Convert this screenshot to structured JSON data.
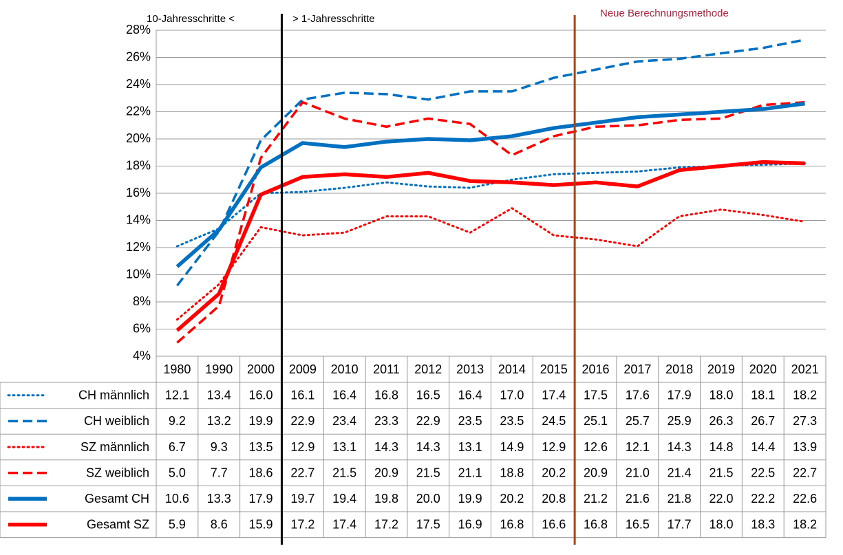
{
  "chart_data": {
    "type": "line",
    "annotations": [
      "10-Jahresschritte <",
      "> 1-Jahresschritte",
      "Neue Berechnungsmethode"
    ],
    "categories": [
      "1980",
      "1990",
      "2000",
      "2009",
      "2010",
      "2011",
      "2012",
      "2013",
      "2014",
      "2015",
      "2016",
      "2017",
      "2018",
      "2019",
      "2020",
      "2021"
    ],
    "ylim": [
      4,
      28
    ],
    "yticks": [
      {
        "value": 4,
        "label": "4%"
      },
      {
        "value": 6,
        "label": "6%"
      },
      {
        "value": 8,
        "label": "8%"
      },
      {
        "value": 10,
        "label": "10%"
      },
      {
        "value": 12,
        "label": "12%"
      },
      {
        "value": 14,
        "label": "14%"
      },
      {
        "value": 16,
        "label": "16%"
      },
      {
        "value": 18,
        "label": "18%"
      },
      {
        "value": 20,
        "label": "20%"
      },
      {
        "value": 22,
        "label": "22%"
      },
      {
        "value": 24,
        "label": "24%"
      },
      {
        "value": 26,
        "label": "26%"
      },
      {
        "value": 28,
        "label": "28%"
      }
    ],
    "grid": true,
    "series": [
      {
        "name": "CH männlich",
        "color": "#0070c0",
        "style": "dotted",
        "values": [
          12.1,
          13.4,
          16.0,
          16.1,
          16.4,
          16.8,
          16.5,
          16.4,
          17.0,
          17.4,
          17.5,
          17.6,
          17.9,
          18.0,
          18.1,
          18.2
        ],
        "value_labels": [
          "12.1",
          "13.4",
          "16.0",
          "16.1",
          "16.4",
          "16.8",
          "16.5",
          "16.4",
          "17.0",
          "17.4",
          "17.5",
          "17.6",
          "17.9",
          "18.0",
          "18.1",
          "18.2"
        ]
      },
      {
        "name": "CH weiblich",
        "color": "#0070c0",
        "style": "dashed",
        "values": [
          9.2,
          13.2,
          19.9,
          22.9,
          23.4,
          23.3,
          22.9,
          23.5,
          23.5,
          24.5,
          25.1,
          25.7,
          25.9,
          26.3,
          26.7,
          27.3
        ],
        "value_labels": [
          "9.2",
          "13.2",
          "19.9",
          "22.9",
          "23.4",
          "23.3",
          "22.9",
          "23.5",
          "23.5",
          "24.5",
          "25.1",
          "25.7",
          "25.9",
          "26.3",
          "26.7",
          "27.3"
        ]
      },
      {
        "name": "SZ männlich",
        "color": "#ff0000",
        "style": "dotted",
        "values": [
          6.7,
          9.3,
          13.5,
          12.9,
          13.1,
          14.3,
          14.3,
          13.1,
          14.9,
          12.9,
          12.6,
          12.1,
          14.3,
          14.8,
          14.4,
          13.9
        ],
        "value_labels": [
          "6.7",
          "9.3",
          "13.5",
          "12.9",
          "13.1",
          "14.3",
          "14.3",
          "13.1",
          "14.9",
          "12.9",
          "12.6",
          "12.1",
          "14.3",
          "14.8",
          "14.4",
          "13.9"
        ]
      },
      {
        "name": "SZ weiblich",
        "color": "#ff0000",
        "style": "dashed",
        "values": [
          5.0,
          7.7,
          18.6,
          22.7,
          21.5,
          20.9,
          21.5,
          21.1,
          18.8,
          20.2,
          20.9,
          21.0,
          21.4,
          21.5,
          22.5,
          22.7
        ],
        "value_labels": [
          "5.0",
          "7.7",
          "18.6",
          "22.7",
          "21.5",
          "20.9",
          "21.5",
          "21.1",
          "18.8",
          "20.2",
          "20.9",
          "21.0",
          "21.4",
          "21.5",
          "22.5",
          "22.7"
        ]
      },
      {
        "name": "Gesamt CH",
        "color": "#0070c0",
        "style": "solid",
        "values": [
          10.6,
          13.3,
          17.9,
          19.7,
          19.4,
          19.8,
          20.0,
          19.9,
          20.2,
          20.8,
          21.2,
          21.6,
          21.8,
          22.0,
          22.2,
          22.6
        ],
        "value_labels": [
          "10.6",
          "13.3",
          "17.9",
          "19.7",
          "19.4",
          "19.8",
          "20.0",
          "19.9",
          "20.2",
          "20.8",
          "21.2",
          "21.6",
          "21.8",
          "22.0",
          "22.2",
          "22.6"
        ]
      },
      {
        "name": "Gesamt SZ",
        "color": "#ff0000",
        "style": "solid",
        "values": [
          5.9,
          8.6,
          15.9,
          17.2,
          17.4,
          17.2,
          17.5,
          16.9,
          16.8,
          16.6,
          16.8,
          16.5,
          17.7,
          18.0,
          18.3,
          18.2
        ],
        "value_labels": [
          "5.9",
          "8.6",
          "15.9",
          "17.2",
          "17.4",
          "17.2",
          "17.5",
          "16.9",
          "16.8",
          "16.6",
          "16.8",
          "16.5",
          "17.7",
          "18.0",
          "18.3",
          "18.2"
        ]
      }
    ]
  }
}
